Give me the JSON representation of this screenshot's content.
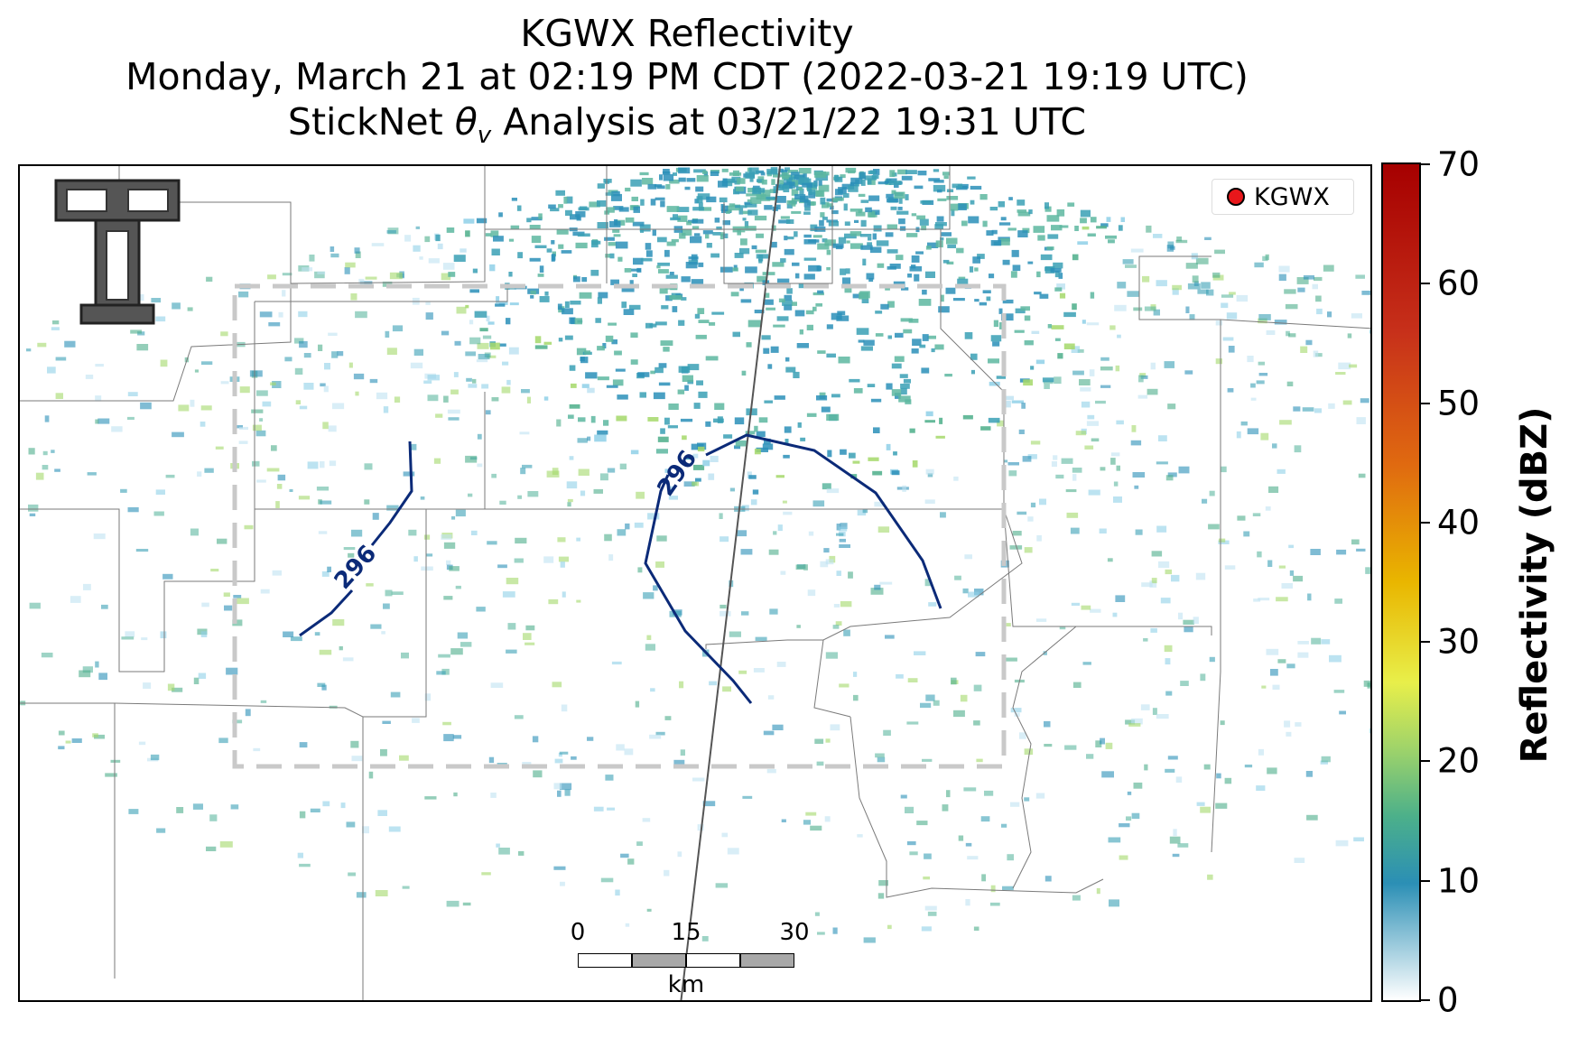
{
  "title": {
    "line1": "KGWX Reflectivity",
    "line2": "Monday, March 21 at 02:19 PM CDT (2022-03-21 19:19 UTC)",
    "line3": "StickNet θv Analysis at 03/21/22 19:31 UTC"
  },
  "legend": {
    "label": "KGWX",
    "marker_color": "#e8171b"
  },
  "contours": [
    {
      "label": "296",
      "color": "#0b2a78"
    },
    {
      "label": "296",
      "color": "#0b2a78"
    }
  ],
  "scalebar": {
    "ticks": [
      "0",
      "15",
      "30"
    ],
    "unit": "km"
  },
  "colorbar": {
    "title": "Reflectivity (dBZ)",
    "ticks": [
      "0",
      "10",
      "20",
      "30",
      "40",
      "50",
      "60",
      "70"
    ]
  },
  "analysis_box_color": "#c9c9c9"
}
